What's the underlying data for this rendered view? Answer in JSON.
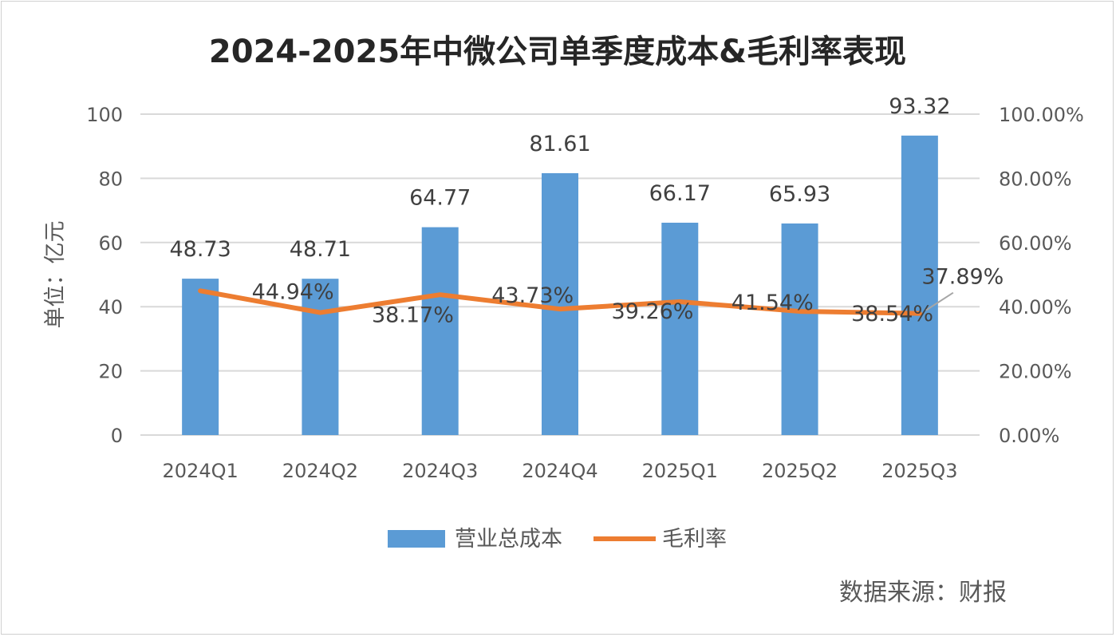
{
  "chart_data": {
    "type": "bar",
    "title": "2024-2025年中微公司单季度成本&毛利率表现",
    "ylabel": "单位：亿元",
    "categories": [
      "2024Q1",
      "2024Q2",
      "2024Q3",
      "2024Q4",
      "2025Q1",
      "2025Q2",
      "2025Q3"
    ],
    "ylim": [
      0,
      100
    ],
    "yticks": [
      "0",
      "20",
      "40",
      "60",
      "80",
      "100"
    ],
    "y2lim": [
      0,
      1
    ],
    "y2ticks": [
      "0.00%",
      "20.00%",
      "40.00%",
      "60.00%",
      "80.00%",
      "100.00%"
    ],
    "grid": true,
    "legend_position": "bottom",
    "series": [
      {
        "name": "营业总成本",
        "type": "bar",
        "axis": "left",
        "color": "#5b9bd5",
        "values": [
          48.73,
          48.71,
          64.77,
          81.61,
          66.17,
          65.93,
          93.32
        ],
        "labels": [
          "48.73",
          "48.71",
          "64.77",
          "81.61",
          "66.17",
          "65.93",
          "93.32"
        ]
      },
      {
        "name": "毛利率",
        "type": "line",
        "axis": "right",
        "color": "#ed7d31",
        "values": [
          0.4494,
          0.3817,
          0.4373,
          0.3926,
          0.4154,
          0.3854,
          0.3789
        ],
        "labels": [
          "44.94%",
          "38.17%",
          "43.73%",
          "39.26%",
          "41.54%",
          "38.54%",
          "37.89%"
        ]
      }
    ],
    "source": "数据来源：财报"
  }
}
